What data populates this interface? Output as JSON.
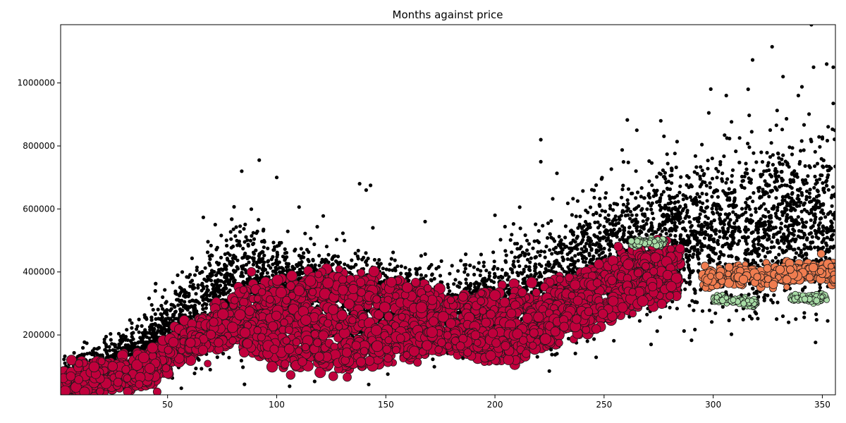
{
  "chart_data": {
    "type": "scatter",
    "title": "Months against price",
    "xlabel": "",
    "ylabel": "",
    "xlim": [
      1,
      356
    ],
    "ylim": [
      10000,
      1185000
    ],
    "xticks": [
      50,
      100,
      150,
      200,
      250,
      300,
      350
    ],
    "yticks": [
      200000,
      400000,
      600000,
      800000,
      1000000
    ],
    "grid": false,
    "legend": "none",
    "series": [
      {
        "role": "raw-points",
        "color": "#000000",
        "marker": "small-dot",
        "trend": [
          [
            1,
            60000
          ],
          [
            20,
            90000
          ],
          [
            40,
            160000
          ],
          [
            60,
            260000
          ],
          [
            80,
            360000
          ],
          [
            100,
            340000
          ],
          [
            120,
            310000
          ],
          [
            150,
            290000
          ],
          [
            180,
            270000
          ],
          [
            200,
            300000
          ],
          [
            220,
            350000
          ],
          [
            240,
            430000
          ],
          [
            260,
            490000
          ],
          [
            280,
            510000
          ],
          [
            300,
            520000
          ],
          [
            330,
            540000
          ],
          [
            356,
            560000
          ]
        ],
        "spread": [
          [
            1,
            50000
          ],
          [
            40,
            90000
          ],
          [
            80,
            170000
          ],
          [
            120,
            150000
          ],
          [
            180,
            110000
          ],
          [
            240,
            170000
          ],
          [
            300,
            220000
          ],
          [
            356,
            250000
          ]
        ],
        "outliers": [
          [
            84,
            720000
          ],
          [
            92,
            755000
          ],
          [
            100,
            700000
          ],
          [
            138,
            680000
          ],
          [
            141,
            660000
          ],
          [
            143,
            675000
          ],
          [
            200,
            580000
          ],
          [
            168,
            560000
          ],
          [
            221,
            820000
          ],
          [
            221,
            750000
          ],
          [
            265,
            850000
          ],
          [
            276,
            880000
          ],
          [
            298,
            905000
          ],
          [
            306,
            960000
          ],
          [
            316,
            980000
          ],
          [
            327,
            1115000
          ],
          [
            332,
            1020000
          ],
          [
            345,
            1185000
          ],
          [
            346,
            1050000
          ],
          [
            352,
            1060000
          ],
          [
            355,
            1050000
          ],
          [
            355,
            935000
          ],
          [
            339,
            960000
          ]
        ]
      },
      {
        "role": "cluster-main",
        "color": "#c0003c",
        "marker": "circle",
        "bands": [
          [
            [
              1,
              40000
            ],
            [
              20,
              50000
            ],
            [
              40,
              80000
            ],
            [
              55,
              140000
            ],
            [
              70,
              240000
            ],
            [
              85,
              310000
            ],
            [
              100,
              330000
            ],
            [
              115,
              340000
            ],
            [
              130,
              350000
            ],
            [
              150,
              330000
            ],
            [
              170,
              300000
            ],
            [
              200,
              290000
            ],
            [
              220,
              300000
            ],
            [
              240,
              360000
            ],
            [
              260,
              420000
            ],
            [
              285,
              460000
            ]
          ],
          [
            [
              1,
              60000
            ],
            [
              20,
              70000
            ],
            [
              40,
              100000
            ],
            [
              55,
              170000
            ],
            [
              70,
              200000
            ],
            [
              85,
              230000
            ],
            [
              100,
              240000
            ],
            [
              120,
              230000
            ],
            [
              150,
              230000
            ],
            [
              180,
              210000
            ],
            [
              200,
              200000
            ],
            [
              215,
              220000
            ],
            [
              230,
              280000
            ],
            [
              250,
              350000
            ],
            [
              270,
              400000
            ],
            [
              285,
              420000
            ]
          ],
          [
            [
              60,
              170000
            ],
            [
              80,
              210000
            ],
            [
              95,
              170000
            ],
            [
              110,
              140000
            ],
            [
              130,
              140000
            ],
            [
              150,
              160000
            ],
            [
              170,
              180000
            ],
            [
              190,
              170000
            ],
            [
              205,
              160000
            ],
            [
              220,
              190000
            ],
            [
              240,
              250000
            ],
            [
              255,
              300000
            ],
            [
              270,
              340000
            ],
            [
              285,
              350000
            ]
          ]
        ]
      },
      {
        "role": "cluster-orange",
        "color": "#f07d50",
        "marker": "circle",
        "bands": [
          [
            [
              295,
              380000
            ],
            [
              310,
              390000
            ],
            [
              325,
              385000
            ],
            [
              340,
              395000
            ],
            [
              356,
              400000
            ]
          ]
        ]
      },
      {
        "role": "cluster-green",
        "color": "#a8dca6",
        "marker": "circle",
        "bands": [
          [
            [
              262,
              490000
            ],
            [
              270,
              495000
            ],
            [
              278,
              492000
            ]
          ],
          [
            [
              300,
              315000
            ],
            [
              310,
              310000
            ],
            [
              320,
              300000
            ]
          ],
          [
            [
              335,
              320000
            ],
            [
              345,
              315000
            ],
            [
              352,
              318000
            ]
          ]
        ]
      }
    ]
  }
}
